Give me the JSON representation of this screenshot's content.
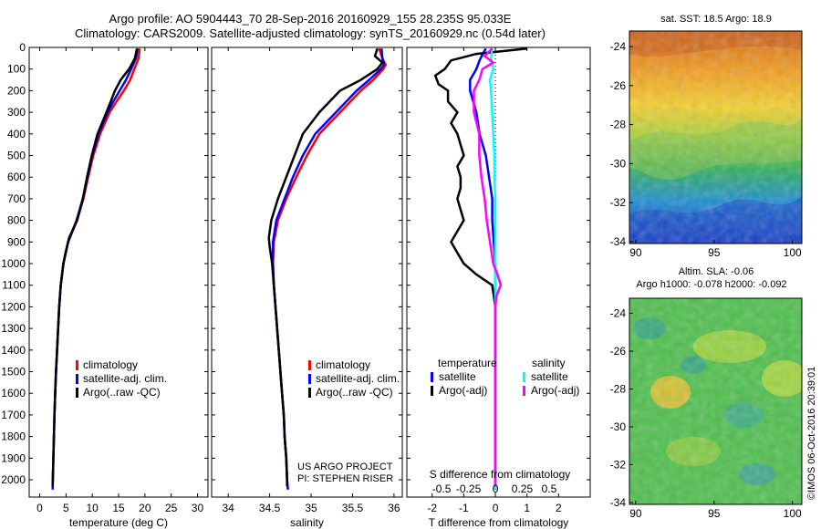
{
  "header": {
    "title_line1": "Argo profile: AO 5904443_70 28-Sep-2016 20160929_155 28.235S 95.033E",
    "title_line2": "Climatology: CARS2009. Satellite-adjusted climatology: synTS_20160929.nc (0.54d later)"
  },
  "colors": {
    "climatology": "#ff0000",
    "satellite": "#0000ff",
    "argo": "#000000",
    "satellite_s": "#00ffff",
    "argo_s": "#ff00ff",
    "zero_line": "#000000"
  },
  "depth_axis": {
    "ticks": [
      0,
      100,
      200,
      300,
      400,
      500,
      600,
      700,
      800,
      900,
      1000,
      1100,
      1200,
      1300,
      1400,
      1500,
      1600,
      1700,
      1800,
      1900,
      2000
    ],
    "ylim": [
      0,
      2080
    ]
  },
  "credits": {
    "line1": "US ARGO PROJECT",
    "line2": "PI: STEPHEN RISER",
    "stamp": "©IMOS 06-Oct-2016 20:39:01"
  },
  "chart_data": [
    {
      "id": "temperature",
      "type": "line",
      "xlabel": "temperature (deg C)",
      "xlim": [
        -2,
        32
      ],
      "xticks": [
        0,
        5,
        10,
        15,
        20,
        25,
        30
      ],
      "ylim": [
        0,
        2080
      ],
      "legend": {
        "items": [
          "climatology",
          "satellite-adj. clim.",
          "Argo(..raw -QC)"
        ],
        "colors": [
          "#ff0000",
          "#0000ff",
          "#000000"
        ]
      },
      "series": [
        {
          "name": "climatology",
          "color": "#ff0000",
          "depth": [
            5,
            50,
            100,
            150,
            200,
            250,
            300,
            400,
            500,
            600,
            700,
            800,
            900,
            1000,
            1100,
            1200,
            1300,
            1400,
            1500,
            1600,
            1700,
            1800,
            1900,
            2000,
            2045
          ],
          "values": [
            19.0,
            18.8,
            18.0,
            17.2,
            16.0,
            14.6,
            13.3,
            11.5,
            10.2,
            9.2,
            8.3,
            7.1,
            5.4,
            4.5,
            4.0,
            3.7,
            3.5,
            3.3,
            3.1,
            2.95,
            2.8,
            2.7,
            2.6,
            2.5,
            2.45
          ]
        },
        {
          "name": "satellite-adj. clim.",
          "color": "#0000ff",
          "depth": [
            5,
            50,
            100,
            150,
            200,
            250,
            300,
            400,
            500,
            600,
            700,
            800,
            900,
            1000,
            1100,
            1200,
            1300,
            1400,
            1500,
            1600,
            1700,
            1800,
            1900,
            2000,
            2045
          ],
          "values": [
            18.6,
            18.3,
            17.4,
            16.4,
            15.2,
            14.0,
            12.9,
            11.2,
            10.0,
            9.1,
            8.2,
            7.0,
            5.4,
            4.5,
            4.0,
            3.7,
            3.5,
            3.3,
            3.1,
            2.95,
            2.8,
            2.7,
            2.6,
            2.5,
            2.45
          ]
        },
        {
          "name": "Argo(..raw -QC)",
          "color": "#000000",
          "depth": [
            5,
            50,
            100,
            150,
            200,
            250,
            300,
            400,
            500,
            600,
            700,
            800,
            880,
            950,
            1000,
            1100,
            1200,
            1300,
            1400,
            1500,
            1600,
            1700,
            1800,
            1900,
            2000,
            2030
          ],
          "values": [
            18.5,
            18.1,
            17.0,
            15.4,
            14.3,
            13.5,
            12.7,
            11.0,
            9.9,
            9.0,
            8.2,
            7.1,
            5.6,
            4.9,
            4.5,
            4.0,
            3.7,
            3.5,
            3.3,
            3.1,
            2.95,
            2.8,
            2.7,
            2.6,
            2.5,
            2.45
          ]
        }
      ]
    },
    {
      "id": "salinity",
      "type": "line",
      "xlabel": "salinity",
      "xlim": [
        33.8,
        36.1
      ],
      "xticks": [
        34,
        34.5,
        35,
        35.5,
        36
      ],
      "ylim": [
        0,
        2080
      ],
      "legend": {
        "items": [
          "climatology",
          "satellite-adj. clim.",
          "Argo(..raw -QC)"
        ],
        "colors": [
          "#ff0000",
          "#0000ff",
          "#000000"
        ]
      },
      "series": [
        {
          "name": "climatology",
          "color": "#ff0000",
          "depth": [
            5,
            50,
            80,
            100,
            150,
            200,
            300,
            400,
            500,
            600,
            700,
            800,
            900,
            1000,
            1100,
            1200,
            1300,
            1400,
            1500,
            1600,
            1700,
            1800,
            1900,
            2000,
            2045
          ],
          "values": [
            35.82,
            35.86,
            35.9,
            35.87,
            35.75,
            35.6,
            35.35,
            35.1,
            34.95,
            34.82,
            34.7,
            34.6,
            34.55,
            34.54,
            34.55,
            34.57,
            34.59,
            34.61,
            34.63,
            34.65,
            34.67,
            34.68,
            34.7,
            34.71,
            34.72
          ]
        },
        {
          "name": "satellite-adj. clim.",
          "color": "#0000ff",
          "depth": [
            5,
            50,
            80,
            100,
            150,
            200,
            300,
            400,
            500,
            600,
            700,
            800,
            900,
            1000,
            1100,
            1200,
            1300,
            1400,
            1500,
            1600,
            1700,
            1800,
            1900,
            2000,
            2045
          ],
          "values": [
            35.85,
            35.86,
            35.88,
            35.84,
            35.7,
            35.55,
            35.3,
            35.05,
            34.9,
            34.78,
            34.68,
            34.58,
            34.54,
            34.54,
            34.55,
            34.57,
            34.59,
            34.61,
            34.63,
            34.65,
            34.67,
            34.68,
            34.7,
            34.71,
            34.72
          ]
        },
        {
          "name": "Argo(..raw -QC)",
          "color": "#000000",
          "depth": [
            5,
            40,
            70,
            100,
            150,
            200,
            300,
            400,
            500,
            600,
            700,
            800,
            880,
            920,
            1000,
            1100,
            1200,
            1300,
            1400,
            1500,
            1600,
            1700,
            1800,
            1900,
            2000,
            2030
          ],
          "values": [
            35.8,
            35.77,
            35.86,
            35.8,
            35.6,
            35.35,
            35.1,
            34.9,
            34.8,
            34.7,
            34.6,
            34.52,
            34.49,
            34.5,
            34.53,
            34.55,
            34.57,
            34.59,
            34.61,
            34.63,
            34.65,
            34.67,
            34.68,
            34.7,
            34.71,
            34.71
          ]
        }
      ]
    },
    {
      "id": "differences",
      "type": "line",
      "xlabel": "T difference from climatology",
      "xlabel_top": "S difference from climatology",
      "xlim": [
        -2.8,
        3.0
      ],
      "xticks": [
        -2,
        -1,
        0,
        1,
        2
      ],
      "s_ticks": [
        -0.5,
        -0.25,
        0,
        0.25,
        0.5
      ],
      "s_tick_labels": [
        "-0.5",
        "-0.25",
        "0",
        "0.25",
        "0.5"
      ],
      "ylim": [
        0,
        2080
      ],
      "legend": {
        "temperature_title": "temperature",
        "salinity_title": "salinity",
        "t_items": [
          "satellite",
          "Argo(-adj)"
        ],
        "s_items": [
          "satellite",
          "Argo(-adj)"
        ]
      },
      "series": [
        {
          "name": "T satellite",
          "color": "#0000ff",
          "depth": [
            5,
            30,
            60,
            100,
            150,
            200,
            300,
            400,
            500,
            600,
            700,
            800,
            900,
            1000,
            1100,
            1200,
            1400,
            1600,
            1800,
            2000,
            2045
          ],
          "values": [
            -0.3,
            -0.4,
            -0.5,
            -0.6,
            -0.8,
            -0.8,
            -0.6,
            -0.5,
            -0.3,
            -0.2,
            -0.1,
            -0.1,
            -0.05,
            0,
            0,
            0,
            0,
            0,
            0,
            0,
            0
          ]
        },
        {
          "name": "T Argo(-adj)",
          "color": "#000000",
          "depth": [
            5,
            30,
            60,
            100,
            130,
            170,
            200,
            250,
            300,
            350,
            400,
            500,
            550,
            600,
            650,
            700,
            750,
            800,
            850,
            900,
            950,
            1000,
            1050,
            1100,
            1200,
            1400,
            1600,
            1800,
            2000,
            2030
          ],
          "values": [
            1.0,
            -0.6,
            -1.4,
            -1.6,
            -1.9,
            -1.8,
            -1.5,
            -1.5,
            -1.2,
            -1.4,
            -1.2,
            -1.0,
            -1.2,
            -1.1,
            -1.1,
            -1.2,
            -1.1,
            -1.0,
            -1.2,
            -1.4,
            -1.2,
            -1.0,
            -0.6,
            -0.1,
            0,
            0,
            0,
            0,
            0,
            0
          ]
        }
      ],
      "s_series": [
        {
          "name": "S satellite",
          "color": "#00ffff",
          "depth": [
            5,
            50,
            100,
            150,
            200,
            300,
            400,
            500,
            600,
            700,
            800,
            900,
            1000,
            1100,
            1200,
            1400,
            1600,
            1800,
            2000,
            2045
          ],
          "values": [
            -0.03,
            -0.04,
            -0.02,
            -0.05,
            -0.04,
            -0.03,
            -0.02,
            -0.01,
            -0.01,
            0,
            0,
            0,
            0,
            0,
            0,
            0,
            0,
            0,
            0,
            0
          ]
        },
        {
          "name": "S Argo(-adj)",
          "color": "#ff00ff",
          "depth": [
            5,
            40,
            70,
            100,
            150,
            200,
            300,
            400,
            500,
            600,
            700,
            800,
            900,
            1000,
            1050,
            1100,
            1150,
            1200,
            1400,
            1600,
            1800,
            2000,
            2030
          ],
          "values": [
            -0.03,
            -0.1,
            -0.02,
            -0.12,
            -0.15,
            -0.2,
            -0.2,
            -0.15,
            -0.15,
            -0.13,
            -0.1,
            -0.08,
            -0.05,
            -0.02,
            0.02,
            0.05,
            0.01,
            0,
            0,
            0,
            0,
            0,
            0
          ]
        }
      ]
    },
    {
      "id": "sst_map",
      "type": "heatmap",
      "title": "sat. SST: 18.5 Argo: 18.9",
      "xticks": [
        90,
        95,
        100
      ],
      "yticks": [
        -24,
        -26,
        -28,
        -30,
        -32,
        -34
      ],
      "xlim": [
        89.6,
        100.6
      ],
      "ylim": [
        -34.1,
        -23.2
      ],
      "description_values": {
        "sat_sst": 18.5,
        "argo": 18.9
      }
    },
    {
      "id": "sla_map",
      "type": "heatmap",
      "title_line1": "Altim. SLA: -0.06",
      "title_line2": "Argo h1000: -0.078 h2000: -0.092",
      "xticks": [
        90,
        95,
        100
      ],
      "yticks": [
        -24,
        -26,
        -28,
        -30,
        -32,
        -34
      ],
      "xlim": [
        89.6,
        100.6
      ],
      "ylim": [
        -34.1,
        -23.2
      ],
      "description_values": {
        "sla": -0.06,
        "h1000": -0.078,
        "h2000": -0.092
      }
    }
  ]
}
